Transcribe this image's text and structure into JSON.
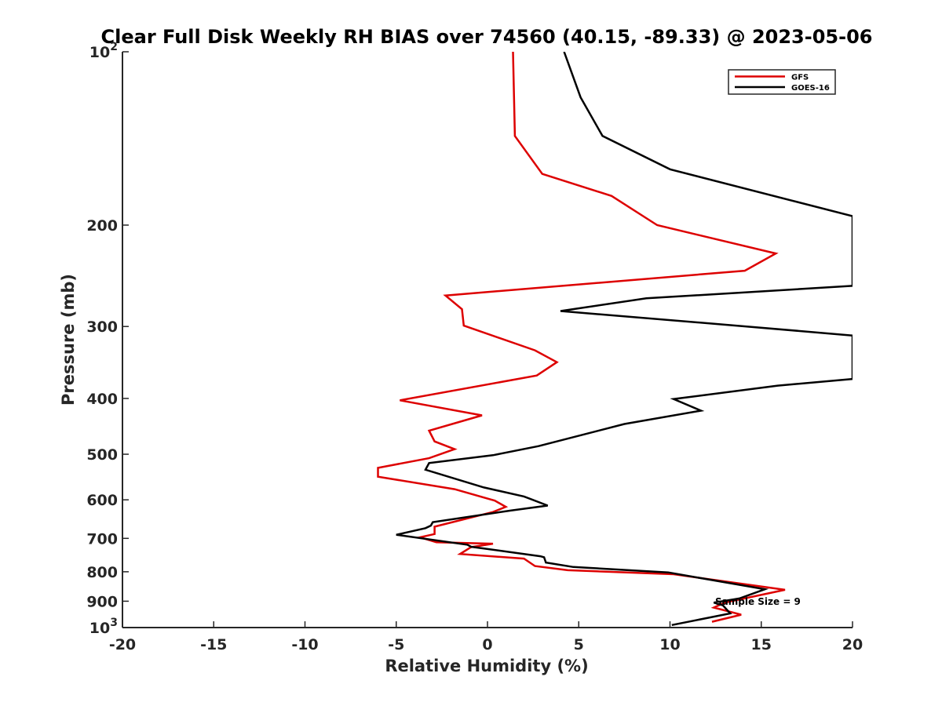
{
  "chart_data": {
    "type": "line",
    "title": "Clear Full Disk Weekly RH BIAS over 74560 (40.15, -89.33) @ 2023-05-06",
    "xlabel": "Relative Humidity (%)",
    "ylabel": "Pressure (mb)",
    "xlim": [
      -20,
      20
    ],
    "ylim": [
      100,
      1000
    ],
    "y_scale": "log",
    "y_reversed": true,
    "x_ticks": [
      -20,
      -15,
      -10,
      -5,
      0,
      5,
      10,
      15,
      20
    ],
    "x_tick_labels": [
      "-20",
      "-15",
      "-10",
      "-5",
      "0",
      "5",
      "10",
      "15",
      "20"
    ],
    "y_ticks": [
      100,
      200,
      300,
      400,
      500,
      600,
      700,
      800,
      900,
      1000
    ],
    "y_tick_labels": [
      {
        "base": "10",
        "exp": "2"
      },
      {
        "base": "200",
        "exp": ""
      },
      {
        "base": "300",
        "exp": ""
      },
      {
        "base": "400",
        "exp": ""
      },
      {
        "base": "500",
        "exp": ""
      },
      {
        "base": "600",
        "exp": ""
      },
      {
        "base": "700",
        "exp": ""
      },
      {
        "base": "800",
        "exp": ""
      },
      {
        "base": "900",
        "exp": ""
      },
      {
        "base": "10",
        "exp": "3"
      }
    ],
    "grid": false,
    "legend_position": "top-right",
    "annotation": "Sample Size = 9",
    "series": [
      {
        "name": "GFS",
        "color": "#dd0000",
        "points": [
          [
            1.4,
            100
          ],
          [
            1.5,
            140
          ],
          [
            3.0,
            163
          ],
          [
            6.8,
            178
          ],
          [
            9.3,
            200
          ],
          [
            15.8,
            224
          ],
          [
            14.1,
            240
          ],
          [
            -2.3,
            265
          ],
          [
            -1.4,
            280
          ],
          [
            -1.3,
            299
          ],
          [
            2.6,
            330
          ],
          [
            3.8,
            346
          ],
          [
            2.7,
            365
          ],
          [
            -4.8,
            403
          ],
          [
            -0.3,
            428
          ],
          [
            -3.2,
            455
          ],
          [
            -2.9,
            475
          ],
          [
            -1.8,
            490
          ],
          [
            -3.2,
            508
          ],
          [
            -6.0,
            528
          ],
          [
            -6.0,
            547
          ],
          [
            -1.8,
            575
          ],
          [
            0.4,
            602
          ],
          [
            1.0,
            617
          ],
          [
            0.3,
            630
          ],
          [
            -2.9,
            668
          ],
          [
            -2.9,
            688
          ],
          [
            -3.7,
            697
          ],
          [
            -2.8,
            711
          ],
          [
            0.3,
            715
          ],
          [
            -0.9,
            725
          ],
          [
            -1.5,
            745
          ],
          [
            2.0,
            759
          ],
          [
            2.6,
            782
          ],
          [
            4.4,
            795
          ],
          [
            10.2,
            808
          ],
          [
            16.3,
            860
          ],
          [
            13.0,
            905
          ],
          [
            12.4,
            923
          ],
          [
            13.9,
            950
          ],
          [
            12.3,
            977
          ]
        ]
      },
      {
        "name": "GOES-16",
        "color": "#000000",
        "points": [
          [
            4.2,
            100
          ],
          [
            5.1,
            120
          ],
          [
            6.3,
            140
          ],
          [
            10.0,
            160
          ],
          [
            20.0,
            193
          ],
          [
            20.0,
            255
          ],
          [
            8.7,
            268
          ],
          [
            4.0,
            282
          ],
          [
            14.2,
            300
          ],
          [
            20.0,
            311
          ],
          [
            20.0,
            370
          ],
          [
            15.9,
            380
          ],
          [
            10.2,
            401
          ],
          [
            11.7,
            420
          ],
          [
            7.5,
            443
          ],
          [
            2.8,
            484
          ],
          [
            0.3,
            502
          ],
          [
            -3.2,
            518
          ],
          [
            -3.4,
            532
          ],
          [
            -0.2,
            571
          ],
          [
            2.0,
            592
          ],
          [
            3.3,
            614
          ],
          [
            1.3,
            626
          ],
          [
            -3.0,
            656
          ],
          [
            -3.1,
            665
          ],
          [
            -3.4,
            672
          ],
          [
            -5.0,
            690
          ],
          [
            -1.1,
            718
          ],
          [
            -0.9,
            724
          ],
          [
            2.9,
            752
          ],
          [
            3.1,
            755
          ],
          [
            3.2,
            771
          ],
          [
            4.7,
            785
          ],
          [
            9.9,
            802
          ],
          [
            15.2,
            858
          ],
          [
            13.8,
            890
          ],
          [
            12.4,
            905
          ],
          [
            12.9,
            915
          ],
          [
            13.3,
            945
          ],
          [
            10.1,
            990
          ]
        ]
      }
    ]
  }
}
